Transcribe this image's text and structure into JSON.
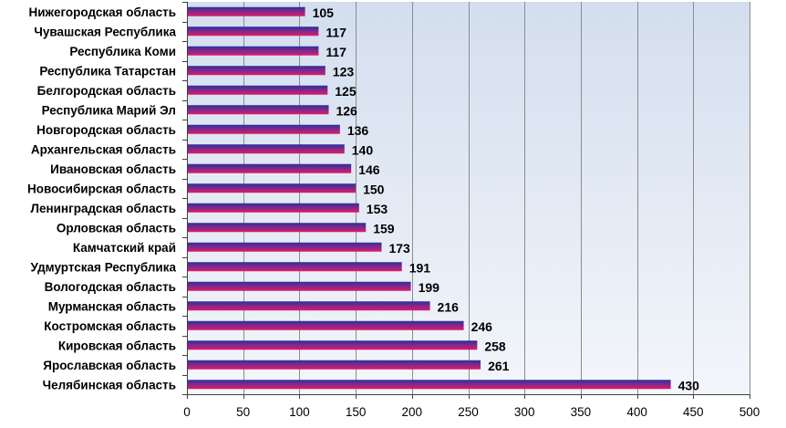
{
  "chart_data": {
    "type": "bar",
    "orientation": "horizontal",
    "categories": [
      "Нижегородская область",
      "Чувашская Республика",
      "Республика Коми",
      "Республика Татарстан",
      "Белгородская область",
      "Республика Марий Эл",
      "Новгородская область",
      "Архангельская область",
      "Ивановская область",
      "Новосибирская область",
      "Ленинградская область",
      "Орловская область",
      "Камчатский край",
      "Удмуртская Республика",
      "Вологодская область",
      "Мурманская область",
      "Костромская область",
      "Кировская область",
      "Ярославская область",
      "Челябинская область"
    ],
    "values": [
      105,
      117,
      117,
      123,
      125,
      126,
      136,
      140,
      146,
      150,
      153,
      159,
      173,
      191,
      199,
      216,
      246,
      258,
      261,
      430
    ],
    "value_labels": [
      "105",
      "117",
      "117",
      "123",
      "125",
      "126",
      "136",
      "140",
      "146",
      "150",
      "153",
      "159",
      "173",
      "191",
      "199",
      "216",
      "246",
      "258",
      "261",
      "430"
    ],
    "xlim": [
      0,
      500
    ],
    "x_ticks": [
      "0",
      "50",
      "100",
      "150",
      "200",
      "250",
      "300",
      "350",
      "400",
      "450",
      "500"
    ],
    "title": "",
    "xlabel": "",
    "ylabel": "",
    "grid": true,
    "legend": "none",
    "colors": {
      "bar_top": "#2B2F9E",
      "bar_mid": "#7A2A8C",
      "bar_bottom": "#E0196A",
      "plot_background_top": "#D3DEEE",
      "plot_background_bottom": "#F3F6FB",
      "gridline": "#8C8C8C",
      "axis": "#404040"
    }
  }
}
